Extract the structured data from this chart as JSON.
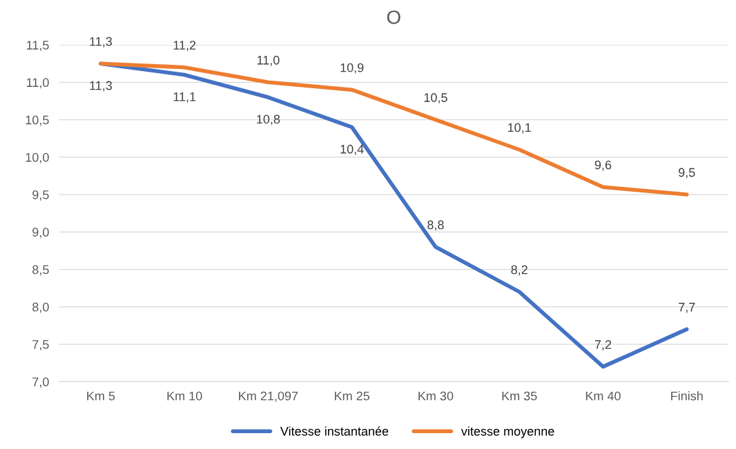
{
  "chart_data": {
    "type": "line",
    "title": "O",
    "categories": [
      "Km 5",
      "Km 10",
      "Km 21,097",
      "Km 25",
      "Km 30",
      "Km 35",
      "Km 40",
      "Finish"
    ],
    "series": [
      {
        "name": "Vitesse instantanée",
        "color": "#4472c4",
        "values": [
          11.25,
          11.1,
          10.8,
          10.4,
          8.8,
          8.2,
          7.2,
          7.7
        ],
        "value_labels": [
          "11,3",
          "11,1",
          "10,8",
          "10,4",
          "8,8",
          "8,2",
          "7,2",
          "7,7"
        ]
      },
      {
        "name": "vitesse moyenne",
        "color": "#ed7d31",
        "values": [
          11.25,
          11.2,
          11.0,
          10.9,
          10.5,
          10.1,
          9.6,
          9.5
        ],
        "value_labels": [
          "11,3",
          "11,2",
          "11,0",
          "10,9",
          "10,5",
          "10,1",
          "9,6",
          "9,5"
        ]
      }
    ],
    "ylim": [
      7.0,
      11.5
    ],
    "yticks": [
      {
        "value": 7.0,
        "label": "7,0"
      },
      {
        "value": 7.5,
        "label": "7,5"
      },
      {
        "value": 8.0,
        "label": "8,0"
      },
      {
        "value": 8.5,
        "label": "8,5"
      },
      {
        "value": 9.0,
        "label": "9,0"
      },
      {
        "value": 9.5,
        "label": "9,5"
      },
      {
        "value": 10.0,
        "label": "10,0"
      },
      {
        "value": 10.5,
        "label": "10,5"
      },
      {
        "value": 11.0,
        "label": "11,0"
      },
      {
        "value": 11.5,
        "label": "11,5"
      }
    ],
    "grid": "y",
    "legend": "bottom",
    "marker": "none",
    "line_style": "solid"
  }
}
